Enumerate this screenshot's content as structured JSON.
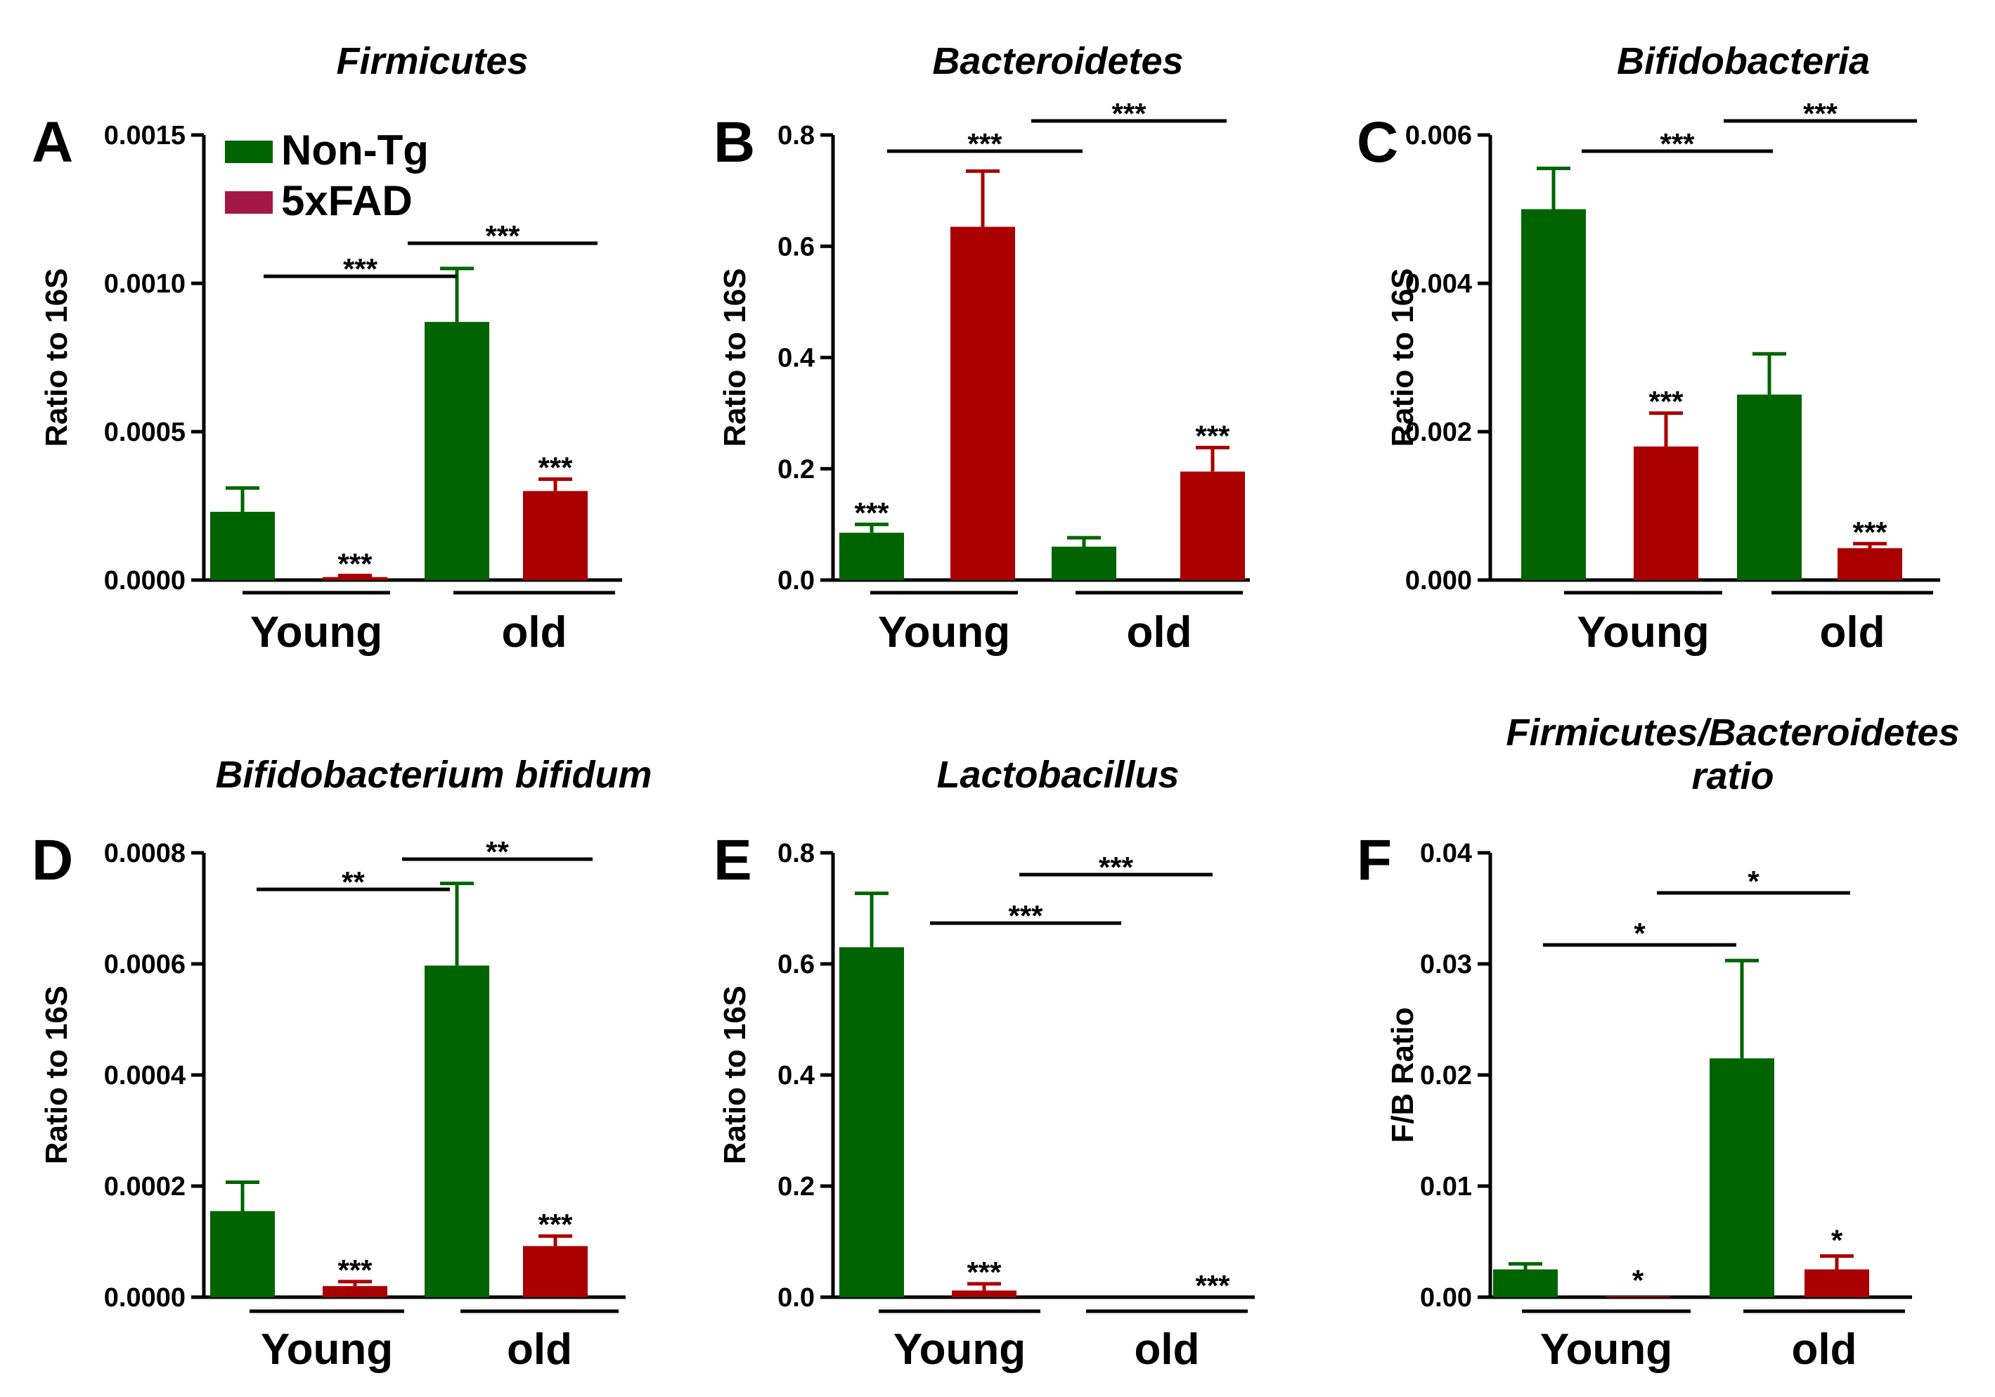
{
  "colors": {
    "nontg": "#006400",
    "fad": "#aa0000",
    "legend_fad": "#a31746",
    "axis": "#000000"
  },
  "legend": [
    {
      "label": "Non-Tg",
      "color": "#006400"
    },
    {
      "label": "5xFAD",
      "color": "#a31746"
    }
  ],
  "chart_data": [
    {
      "panel": "A",
      "type": "bar",
      "title": "Firmicutes",
      "ylabel": "Ratio to 16S",
      "ylim": [
        0,
        0.0015
      ],
      "yticks": [
        "0.0000",
        "0.0005",
        "0.0010",
        "0.0015"
      ],
      "groups": [
        "Young",
        "old"
      ],
      "series_names": [
        "Non-Tg",
        "5xFAD"
      ],
      "bars": [
        {
          "group": "Young",
          "series": "Non-Tg",
          "value": 0.00023,
          "error": 8e-05,
          "star": ""
        },
        {
          "group": "Young",
          "series": "5xFAD",
          "value": 1e-05,
          "error": 5e-06,
          "star": "***"
        },
        {
          "group": "old",
          "series": "Non-Tg",
          "value": 0.00087,
          "error": 0.00018,
          "star": ""
        },
        {
          "group": "old",
          "series": "5xFAD",
          "value": 0.0003,
          "error": 4e-05,
          "star": "***"
        }
      ],
      "brackets": [
        {
          "from_bar": 0,
          "to_bar": 2,
          "label": "***"
        },
        {
          "from_bar": 1,
          "to_bar": 3,
          "label": "***"
        }
      ]
    },
    {
      "panel": "B",
      "type": "bar",
      "title": "Bacteroidetes",
      "ylabel": "Ratio to 16S",
      "ylim": [
        0,
        0.8
      ],
      "yticks": [
        "0.0",
        "0.2",
        "0.4",
        "0.6",
        "0.8"
      ],
      "groups": [
        "Young",
        "old"
      ],
      "series_names": [
        "Non-Tg",
        "5xFAD"
      ],
      "bars": [
        {
          "group": "Young",
          "series": "Non-Tg",
          "value": 0.085,
          "error": 0.015,
          "star": "***"
        },
        {
          "group": "Young",
          "series": "5xFAD",
          "value": 0.635,
          "error": 0.1,
          "star": ""
        },
        {
          "group": "old",
          "series": "Non-Tg",
          "value": 0.06,
          "error": 0.016,
          "star": ""
        },
        {
          "group": "old",
          "series": "5xFAD",
          "value": 0.195,
          "error": 0.043,
          "star": "***"
        }
      ],
      "brackets": [
        {
          "from_bar": 0,
          "to_bar": 2,
          "label": "***"
        },
        {
          "from_bar": 1,
          "to_bar": 3,
          "label": "***"
        }
      ]
    },
    {
      "panel": "C",
      "type": "bar",
      "title": "Bifidobacteria",
      "ylabel": "Ratio to 16S",
      "ylim": [
        0,
        0.006
      ],
      "yticks": [
        "0.000",
        "0.002",
        "0.004",
        "0.006"
      ],
      "groups": [
        "Young",
        "old"
      ],
      "series_names": [
        "Non-Tg",
        "5xFAD"
      ],
      "bars": [
        {
          "group": "Young",
          "series": "Non-Tg",
          "value": 0.005,
          "error": 0.00055,
          "star": ""
        },
        {
          "group": "Young",
          "series": "5xFAD",
          "value": 0.0018,
          "error": 0.00045,
          "star": "***"
        },
        {
          "group": "old",
          "series": "Non-Tg",
          "value": 0.0025,
          "error": 0.00055,
          "star": ""
        },
        {
          "group": "old",
          "series": "5xFAD",
          "value": 0.00043,
          "error": 6e-05,
          "star": "***"
        }
      ],
      "brackets": [
        {
          "from_bar": 0,
          "to_bar": 2,
          "label": "***"
        },
        {
          "from_bar": 1,
          "to_bar": 3,
          "label": "***"
        }
      ]
    },
    {
      "panel": "D",
      "type": "bar",
      "title": "Bifidobacterium bifidum",
      "ylabel": "Ratio to 16S",
      "ylim": [
        0,
        0.0008
      ],
      "yticks": [
        "0.0000",
        "0.0002",
        "0.0004",
        "0.0006",
        "0.0008"
      ],
      "groups": [
        "Young",
        "old"
      ],
      "series_names": [
        "Non-Tg",
        "5xFAD"
      ],
      "bars": [
        {
          "group": "Young",
          "series": "Non-Tg",
          "value": 0.000155,
          "error": 5.2e-05,
          "star": ""
        },
        {
          "group": "Young",
          "series": "5xFAD",
          "value": 2e-05,
          "error": 8e-06,
          "star": "***"
        },
        {
          "group": "old",
          "series": "Non-Tg",
          "value": 0.000597,
          "error": 0.000148,
          "star": ""
        },
        {
          "group": "old",
          "series": "5xFAD",
          "value": 9.2e-05,
          "error": 1.8e-05,
          "star": "***"
        }
      ],
      "brackets": [
        {
          "from_bar": 0,
          "to_bar": 2,
          "label": "**"
        },
        {
          "from_bar": 1,
          "to_bar": 3,
          "label": "**"
        }
      ]
    },
    {
      "panel": "E",
      "type": "bar",
      "title": "Lactobacillus",
      "ylabel": "Ratio to 16S",
      "ylim": [
        0,
        0.8
      ],
      "yticks": [
        "0.0",
        "0.2",
        "0.4",
        "0.6",
        "0.8"
      ],
      "groups": [
        "Young",
        "old"
      ],
      "series_names": [
        "Non-Tg",
        "5xFAD"
      ],
      "bars": [
        {
          "group": "Young",
          "series": "Non-Tg",
          "value": 0.63,
          "error": 0.097,
          "star": ""
        },
        {
          "group": "Young",
          "series": "5xFAD",
          "value": 0.012,
          "error": 0.012,
          "star": "***"
        },
        {
          "group": "old",
          "series": "Non-Tg",
          "value": 0.0,
          "error": 0.0,
          "star": ""
        },
        {
          "group": "old",
          "series": "5xFAD",
          "value": 0.0,
          "error": 0.0,
          "star": "***"
        }
      ],
      "brackets": [
        {
          "from_bar": 0,
          "to_bar": 2,
          "label": "***"
        },
        {
          "from_bar": 1,
          "to_bar": 3,
          "label": "***"
        }
      ]
    },
    {
      "panel": "F",
      "type": "bar",
      "title_lines": [
        "Firmicutes/Bacteroidetes",
        "ratio"
      ],
      "ylabel": "F/B Ratio",
      "ylim": [
        0,
        0.04
      ],
      "yticks": [
        "0.00",
        "0.01",
        "0.02",
        "0.03",
        "0.04"
      ],
      "groups": [
        "Young",
        "old"
      ],
      "series_names": [
        "Non-Tg",
        "5xFAD"
      ],
      "bars": [
        {
          "group": "Young",
          "series": "Non-Tg",
          "value": 0.0025,
          "error": 0.0005,
          "star": ""
        },
        {
          "group": "Young",
          "series": "5xFAD",
          "value": 0.0001,
          "error": 0.0,
          "star": "*"
        },
        {
          "group": "old",
          "series": "Non-Tg",
          "value": 0.0215,
          "error": 0.0088,
          "star": ""
        },
        {
          "group": "old",
          "series": "5xFAD",
          "value": 0.0025,
          "error": 0.0012,
          "star": "*"
        }
      ],
      "brackets": [
        {
          "from_bar": 0,
          "to_bar": 2,
          "label": "*"
        },
        {
          "from_bar": 1,
          "to_bar": 3,
          "label": "*"
        }
      ]
    }
  ]
}
